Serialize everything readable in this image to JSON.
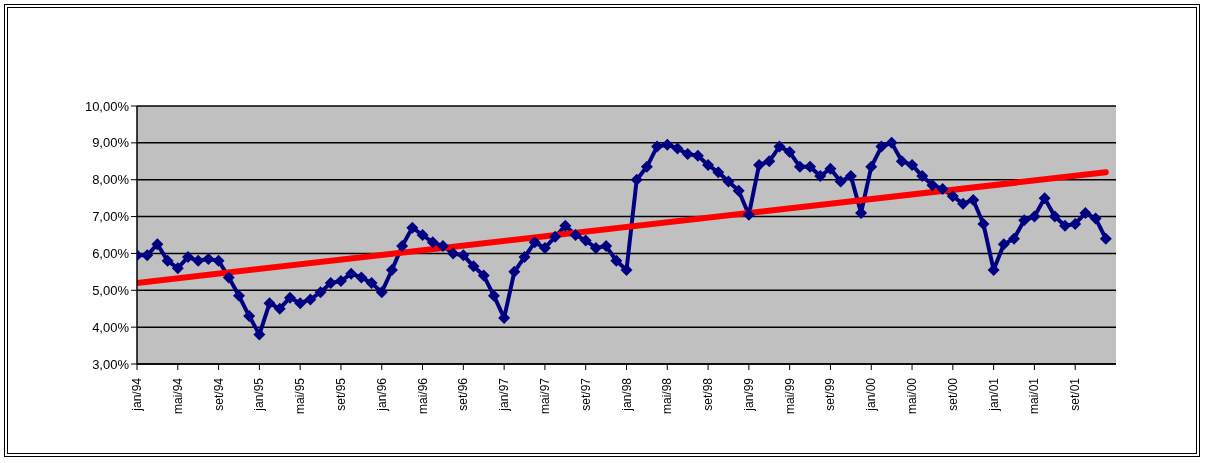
{
  "chart_data": {
    "type": "line",
    "categories": [
      "jan/94",
      null,
      null,
      null,
      "mai/94",
      null,
      null,
      null,
      "set/94",
      null,
      null,
      null,
      "jan/95",
      null,
      null,
      null,
      "mai/95",
      null,
      null,
      null,
      "set/95",
      null,
      null,
      null,
      "jan/96",
      null,
      null,
      null,
      "mai/96",
      null,
      null,
      null,
      "set/96",
      null,
      null,
      null,
      "jan/97",
      null,
      null,
      null,
      "mai/97",
      null,
      null,
      null,
      "set/97",
      null,
      null,
      null,
      "jan/98",
      null,
      null,
      null,
      "mai/98",
      null,
      null,
      null,
      "set/98",
      null,
      null,
      null,
      "jan/99",
      null,
      null,
      null,
      "mai/99",
      null,
      null,
      null,
      "set/99",
      null,
      null,
      null,
      "jan/00",
      null,
      null,
      null,
      "mai/00",
      null,
      null,
      null,
      "set/00",
      null,
      null,
      null,
      "jan/01",
      null,
      null,
      null,
      "mai/01",
      null,
      null,
      null,
      "set/01",
      null,
      null,
      null
    ],
    "series": [
      {
        "color": "#000080",
        "marker": "diamond",
        "values": [
          5.95,
          5.95,
          6.25,
          5.8,
          5.6,
          5.9,
          5.8,
          5.85,
          5.8,
          5.35,
          4.85,
          4.3,
          3.8,
          4.65,
          4.5,
          4.8,
          4.65,
          4.75,
          4.95,
          5.2,
          5.25,
          5.45,
          5.35,
          5.2,
          4.95,
          5.55,
          6.2,
          6.7,
          6.5,
          6.3,
          6.2,
          6.0,
          5.95,
          5.65,
          5.4,
          4.85,
          4.25,
          5.5,
          5.9,
          6.3,
          6.15,
          6.45,
          6.75,
          6.5,
          6.35,
          6.15,
          6.2,
          5.8,
          5.55,
          8.0,
          8.35,
          8.9,
          8.95,
          8.85,
          8.7,
          8.65,
          8.4,
          8.2,
          7.95,
          7.7,
          7.05,
          8.4,
          8.5,
          8.9,
          8.75,
          8.35,
          8.35,
          8.1,
          8.3,
          7.95,
          8.1,
          7.1,
          8.35,
          8.9,
          9.0,
          8.5,
          8.4,
          8.1,
          7.85,
          7.75,
          7.55,
          7.35,
          7.45,
          6.8,
          5.55,
          6.25,
          6.4,
          6.9,
          7.0,
          7.5,
          7.0,
          6.75,
          6.8,
          7.1,
          6.95,
          6.4
        ]
      },
      {
        "type": "line",
        "color": "#ff0000",
        "marker": "none",
        "values": [
          5.2,
          null,
          null,
          null,
          null,
          null,
          null,
          null,
          null,
          null,
          null,
          null,
          null,
          null,
          null,
          null,
          null,
          null,
          null,
          null,
          null,
          null,
          null,
          null,
          null,
          null,
          null,
          null,
          null,
          null,
          null,
          null,
          null,
          null,
          null,
          null,
          null,
          null,
          null,
          null,
          null,
          null,
          null,
          null,
          null,
          null,
          null,
          null,
          null,
          null,
          null,
          null,
          null,
          null,
          null,
          null,
          null,
          null,
          null,
          null,
          null,
          null,
          null,
          null,
          null,
          null,
          null,
          null,
          null,
          null,
          null,
          null,
          null,
          null,
          null,
          null,
          null,
          null,
          null,
          null,
          null,
          null,
          null,
          null,
          null,
          null,
          null,
          null,
          null,
          null,
          null,
          null,
          null,
          null,
          null,
          8.2
        ]
      }
    ],
    "ylim": [
      3,
      10
    ],
    "yticks": [
      {
        "value": 3,
        "label": "3,00%"
      },
      {
        "value": 4,
        "label": "4,00%"
      },
      {
        "value": 5,
        "label": "5,00%"
      },
      {
        "value": 6,
        "label": "6,00%"
      },
      {
        "value": 7,
        "label": "7,00%"
      },
      {
        "value": 8,
        "label": "8,00%"
      },
      {
        "value": 9,
        "label": "9,00%"
      },
      {
        "value": 10,
        "label": "10,00%"
      }
    ],
    "grid": "y",
    "legend": false
  }
}
